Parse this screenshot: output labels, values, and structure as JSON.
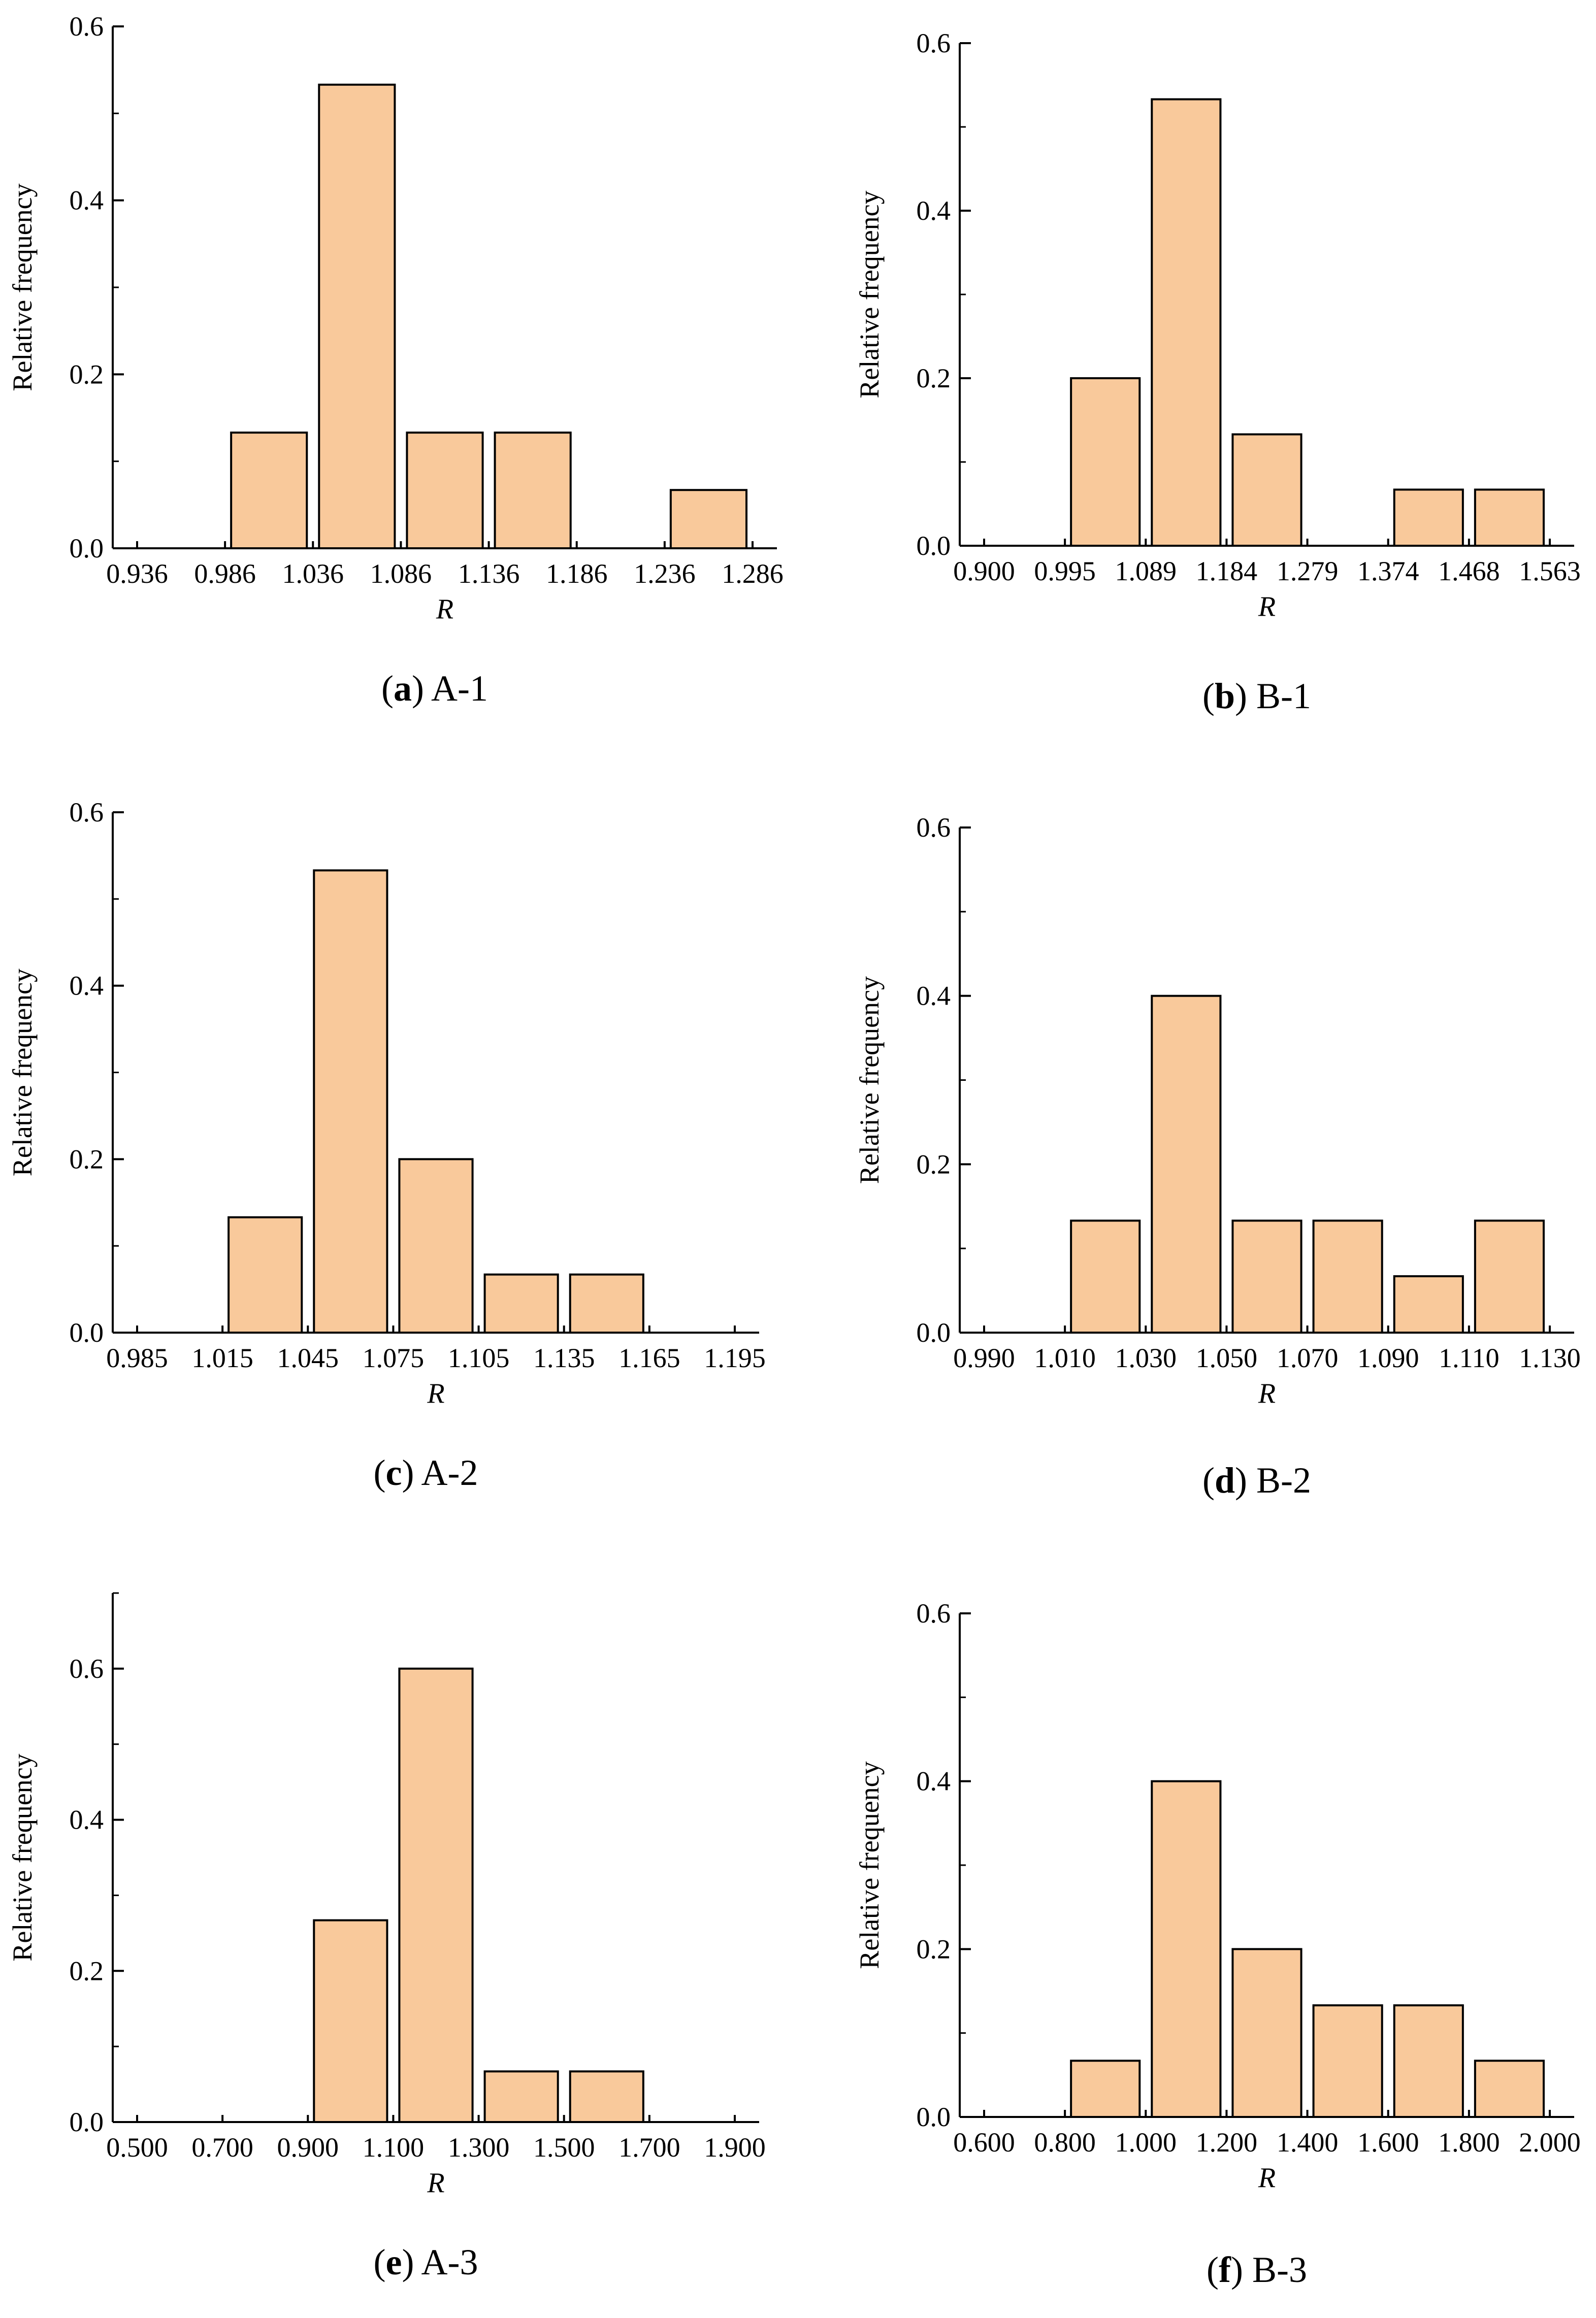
{
  "colors": {
    "bar_fill": "#F9C99B",
    "bar_stroke": "#000000",
    "axis": "#000000"
  },
  "chart_data": [
    {
      "type": "bar",
      "panel": "a",
      "caption_letter": "a",
      "caption_label": "A-1",
      "xlabel": "R",
      "ylabel": "Relative frequency",
      "ylim": [
        0,
        0.6
      ],
      "yticks": [
        "0.0",
        "0.2",
        "0.4",
        "0.6"
      ],
      "xticks": [
        "0.936",
        "0.986",
        "1.036",
        "1.086",
        "1.136",
        "1.186",
        "1.236",
        "1.286"
      ],
      "values": [
        0,
        0.133,
        0.533,
        0.133,
        0.133,
        0,
        0.067
      ]
    },
    {
      "type": "bar",
      "panel": "b",
      "caption_letter": "b",
      "caption_label": "B-1",
      "xlabel": "R",
      "ylabel": "Relative frequency",
      "ylim": [
        0,
        0.6
      ],
      "yticks": [
        "0.0",
        "0.2",
        "0.4",
        "0.6"
      ],
      "xticks": [
        "0.900",
        "0.995",
        "1.089",
        "1.184",
        "1.279",
        "1.374",
        "1.468",
        "1.563"
      ],
      "values": [
        0,
        0.2,
        0.533,
        0.133,
        0,
        0.067,
        0.067
      ]
    },
    {
      "type": "bar",
      "panel": "c",
      "caption_letter": "c",
      "caption_label": "A-2",
      "xlabel": "R",
      "ylabel": "Relative frequency",
      "ylim": [
        0,
        0.6
      ],
      "yticks": [
        "0.0",
        "0.2",
        "0.4",
        "0.6"
      ],
      "xticks": [
        "0.985",
        "1.015",
        "1.045",
        "1.075",
        "1.105",
        "1.135",
        "1.165",
        "1.195"
      ],
      "values": [
        0,
        0.133,
        0.533,
        0.2,
        0.067,
        0.067,
        0
      ]
    },
    {
      "type": "bar",
      "panel": "d",
      "caption_letter": "d",
      "caption_label": "B-2",
      "xlabel": "R",
      "ylabel": "Relative frequency",
      "ylim": [
        0,
        0.6
      ],
      "yticks": [
        "0.0",
        "0.2",
        "0.4",
        "0.6"
      ],
      "xticks": [
        "0.990",
        "1.010",
        "1.030",
        "1.050",
        "1.070",
        "1.090",
        "1.110",
        "1.130"
      ],
      "values": [
        0,
        0.133,
        0.4,
        0.133,
        0.133,
        0.067,
        0.133
      ]
    },
    {
      "type": "bar",
      "panel": "e",
      "caption_letter": "e",
      "caption_label": "A-3",
      "xlabel": "R",
      "ylabel": "Relative frequency",
      "ylim": [
        0,
        0.7
      ],
      "yticks": [
        "0.0",
        "0.2",
        "0.4",
        "0.6"
      ],
      "ytick_values": [
        0,
        0.2,
        0.4,
        0.6
      ],
      "xticks": [
        "0.500",
        "0.700",
        "0.900",
        "1.100",
        "1.300",
        "1.500",
        "1.700",
        "1.900"
      ],
      "values": [
        0,
        0,
        0.267,
        0.6,
        0.067,
        0.067,
        0
      ]
    },
    {
      "type": "bar",
      "panel": "f",
      "caption_letter": "f",
      "caption_label": "B-3",
      "xlabel": "R",
      "ylabel": "Relative frequency",
      "ylim": [
        0,
        0.6
      ],
      "yticks": [
        "0.0",
        "0.2",
        "0.4",
        "0.6"
      ],
      "xticks": [
        "0.600",
        "0.800",
        "1.000",
        "1.200",
        "1.400",
        "1.600",
        "1.800",
        "2.000"
      ],
      "values": [
        0,
        0.067,
        0.4,
        0.2,
        0.133,
        0.133,
        0.067
      ]
    }
  ]
}
